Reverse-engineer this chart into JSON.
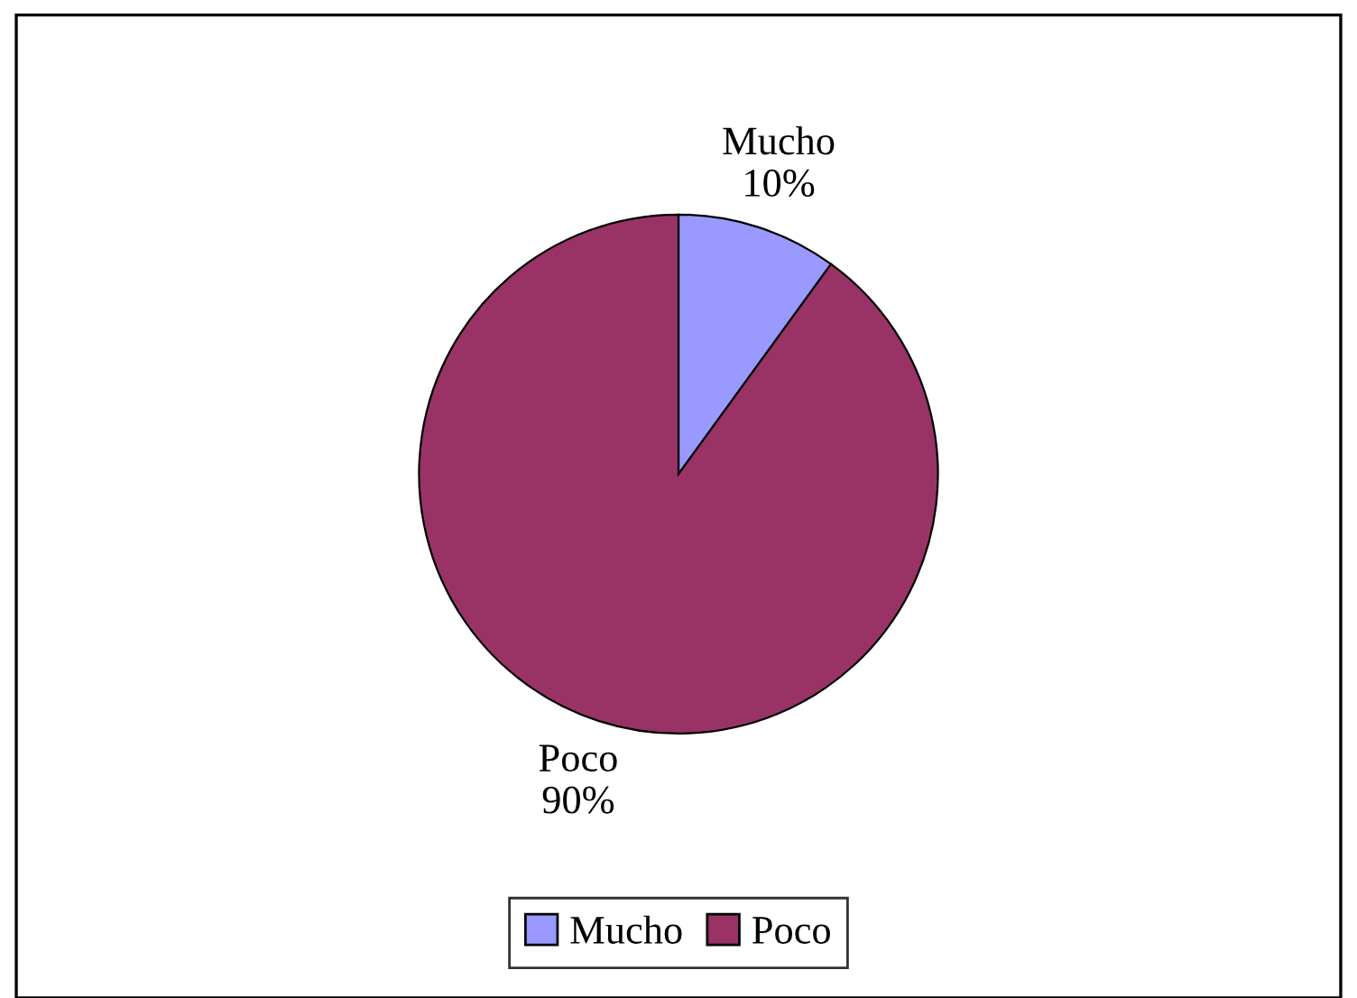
{
  "chart_data": {
    "type": "pie",
    "categories": [
      "Mucho",
      "Poco"
    ],
    "values": [
      10,
      90
    ],
    "colors": [
      "#9999ff",
      "#993366"
    ],
    "value_labels": [
      "10%",
      "90%"
    ],
    "legend": "bottom"
  }
}
